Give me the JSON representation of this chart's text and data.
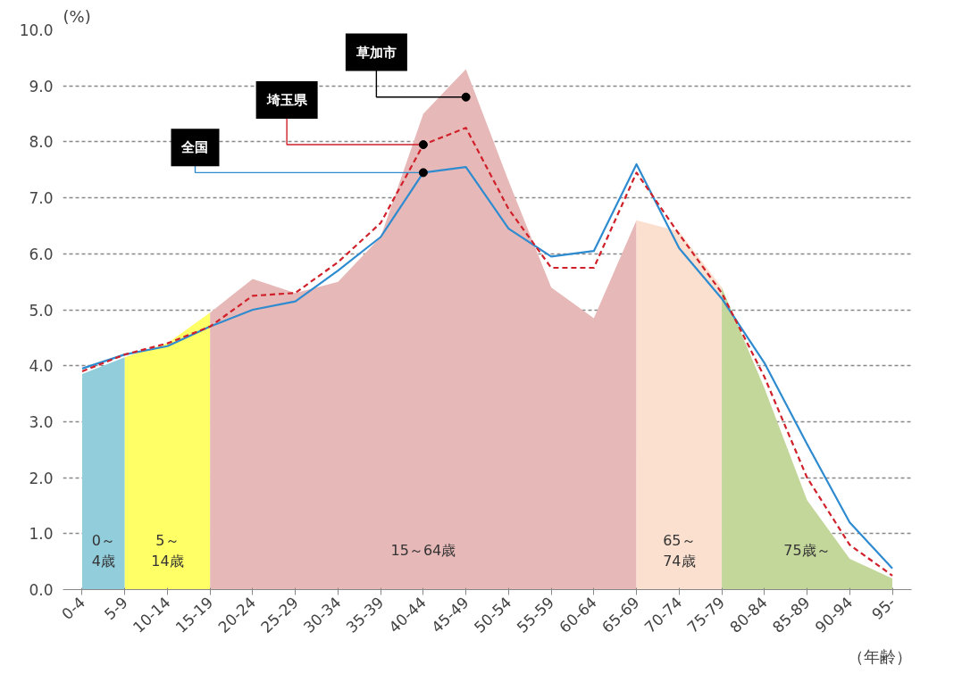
{
  "chart_data": {
    "type": "line",
    "ylabel": "(%)",
    "xlabel": "（年齢）",
    "categories": [
      "0-4",
      "5-9",
      "10-14",
      "15-19",
      "20-24",
      "25-29",
      "30-34",
      "35-39",
      "40-44",
      "45-49",
      "50-54",
      "55-59",
      "60-64",
      "65-69",
      "70-74",
      "75-79",
      "80-84",
      "85-89",
      "90-94",
      "95-"
    ],
    "series": [
      {
        "name": "0～\n4歳",
        "type": "area",
        "color": "#92cddc",
        "values": [
          3.85,
          4.15,
          null,
          null,
          null,
          null,
          null,
          null,
          null,
          null,
          null,
          null,
          null,
          null,
          null,
          null,
          null,
          null,
          null,
          null
        ]
      },
      {
        "name": "5～\n14歳",
        "type": "area",
        "color": "#ffff66",
        "values": [
          null,
          4.15,
          4.4,
          4.95,
          null,
          null,
          null,
          null,
          null,
          null,
          null,
          null,
          null,
          null,
          null,
          null,
          null,
          null,
          null,
          null
        ]
      },
      {
        "name": "15～64歳",
        "type": "area",
        "color": "#e6b8b7",
        "values": [
          null,
          null,
          null,
          4.95,
          5.55,
          5.3,
          5.5,
          6.3,
          8.5,
          9.3,
          7.3,
          5.4,
          4.85,
          6.6,
          null,
          null,
          null,
          null,
          null,
          null
        ]
      },
      {
        "name": "65～\n74歳",
        "type": "area",
        "color": "#fbe0d0",
        "values": [
          null,
          null,
          null,
          null,
          null,
          null,
          null,
          null,
          null,
          null,
          null,
          null,
          null,
          6.6,
          6.4,
          5.4,
          null,
          null,
          null,
          null
        ]
      },
      {
        "name": "75歳～",
        "type": "area",
        "color": "#c4d79b",
        "values": [
          null,
          null,
          null,
          null,
          null,
          null,
          null,
          null,
          null,
          null,
          null,
          null,
          null,
          null,
          null,
          5.4,
          3.6,
          1.6,
          0.55,
          0.2
        ]
      },
      {
        "name": "全国",
        "color": "#2e8bd0",
        "line_style": "solid",
        "values": [
          3.95,
          4.2,
          4.35,
          4.7,
          5.0,
          5.15,
          5.7,
          6.3,
          7.45,
          7.55,
          6.45,
          5.95,
          6.05,
          7.6,
          6.1,
          5.2,
          4.05,
          2.6,
          1.2,
          0.38
        ]
      },
      {
        "name": "埼玉県",
        "color": "#d0202a",
        "line_style": "dashed",
        "values": [
          3.9,
          4.2,
          4.4,
          4.7,
          5.25,
          5.3,
          5.85,
          6.55,
          7.95,
          8.25,
          6.8,
          5.75,
          5.75,
          7.45,
          6.35,
          5.3,
          3.8,
          2.0,
          0.8,
          0.25
        ]
      }
    ],
    "annotations": [
      {
        "text": "草加市",
        "x": "45-49",
        "y": 8.8
      }
    ],
    "ylim": [
      0,
      10
    ],
    "yticks": [
      {
        "value": 0,
        "label": "0.0"
      },
      {
        "value": 1,
        "label": "1.0"
      },
      {
        "value": 2,
        "label": "2.0"
      },
      {
        "value": 3,
        "label": "3.0"
      },
      {
        "value": 4,
        "label": "4.0"
      },
      {
        "value": 5,
        "label": "5.0"
      },
      {
        "value": 6,
        "label": "6.0"
      },
      {
        "value": 7,
        "label": "7.0"
      },
      {
        "value": 8,
        "label": "8.0"
      },
      {
        "value": 9,
        "label": "9.0"
      },
      {
        "value": 10,
        "label": "10.0"
      }
    ],
    "grid": "y",
    "legend": false,
    "marker": "none"
  }
}
